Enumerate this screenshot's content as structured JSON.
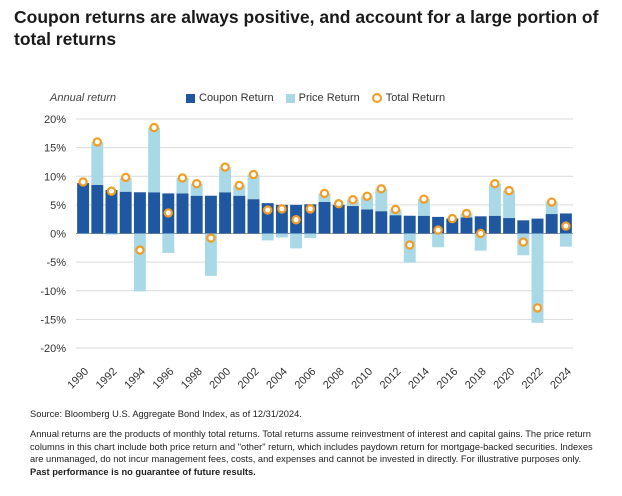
{
  "title": "Coupon returns are always positive, and account for a large portion of total returns",
  "chart_data": {
    "type": "bar",
    "ylabel": "Annual return",
    "ylim": [
      -20,
      20
    ],
    "yticks": [
      "20%",
      "15%",
      "10%",
      "5%",
      "0%",
      "-5%",
      "-10%",
      "-15%",
      "-20%"
    ],
    "ytick_values": [
      20,
      15,
      10,
      5,
      0,
      -5,
      -10,
      -15,
      -20
    ],
    "grid": true,
    "legend_position": "top",
    "legend": [
      {
        "label": "Coupon Return",
        "color": "#1f57a0",
        "shape": "square"
      },
      {
        "label": "Price Return",
        "color": "#a9d9e6",
        "shape": "square"
      },
      {
        "label": "Total Return",
        "color": "#f39c22",
        "shape": "circle"
      }
    ],
    "xtick_labels": [
      "1990",
      "1992",
      "1994",
      "1996",
      "1998",
      "2000",
      "2002",
      "2004",
      "2006",
      "2008",
      "2010",
      "2012",
      "2014",
      "2016",
      "2018",
      "2020",
      "2022",
      "2024"
    ],
    "categories": [
      1990,
      1991,
      1992,
      1993,
      1994,
      1995,
      1996,
      1997,
      1998,
      1999,
      2000,
      2001,
      2002,
      2003,
      2004,
      2005,
      2006,
      2007,
      2008,
      2009,
      2010,
      2011,
      2012,
      2013,
      2014,
      2015,
      2016,
      2017,
      2018,
      2019,
      2020,
      2021,
      2022,
      2023,
      2024
    ],
    "series": [
      {
        "name": "Coupon Return",
        "color": "#1f57a0",
        "values": [
          8.8,
          8.5,
          7.6,
          7.3,
          7.2,
          7.2,
          7.0,
          7.0,
          6.6,
          6.6,
          7.2,
          6.6,
          6.0,
          5.3,
          5.0,
          5.0,
          5.1,
          5.5,
          5.0,
          4.8,
          4.2,
          3.9,
          3.2,
          3.1,
          3.1,
          2.9,
          2.6,
          2.8,
          3.0,
          3.1,
          2.7,
          2.3,
          2.6,
          3.4,
          3.5
        ]
      },
      {
        "name": "Price Return",
        "color": "#a9d9e6",
        "values": [
          -0.1,
          7.5,
          -0.2,
          2.4,
          -10.1,
          11.3,
          -3.4,
          2.7,
          2.1,
          -7.4,
          4.4,
          1.8,
          4.3,
          -1.2,
          -0.7,
          -2.6,
          -0.8,
          1.5,
          0.2,
          1.1,
          2.3,
          3.9,
          1.0,
          -5.1,
          2.9,
          -2.4,
          0.1,
          0.7,
          -3.0,
          5.6,
          4.8,
          -3.8,
          -15.6,
          2.2,
          -2.3
        ]
      },
      {
        "name": "Total Return",
        "color": "#f39c22",
        "values": [
          9.0,
          16.0,
          7.4,
          9.8,
          -2.9,
          18.5,
          3.6,
          9.7,
          8.7,
          -0.8,
          11.6,
          8.4,
          10.3,
          4.1,
          4.3,
          2.4,
          4.3,
          7.0,
          5.2,
          5.9,
          6.5,
          7.8,
          4.2,
          -2.0,
          6.0,
          0.6,
          2.6,
          3.5,
          0.0,
          8.7,
          7.5,
          -1.5,
          -13.0,
          5.5,
          1.3
        ]
      }
    ]
  },
  "notes": {
    "source": "Source: Bloomberg U.S. Aggregate Bond Index, as of 12/31/2024.",
    "body": "Annual returns are the products of monthly total returns. Total returns assume reinvestment of interest and capital gains. The price return columns in this chart include both price return and \"other\" return, which includes paydown return for mortgage-backed securities. Indexes are unmanaged, do not incur management fees, costs, and expenses and cannot be invested in directly. For illustrative purposes only.",
    "disclaimer": "Past performance is no guarantee of future results."
  }
}
